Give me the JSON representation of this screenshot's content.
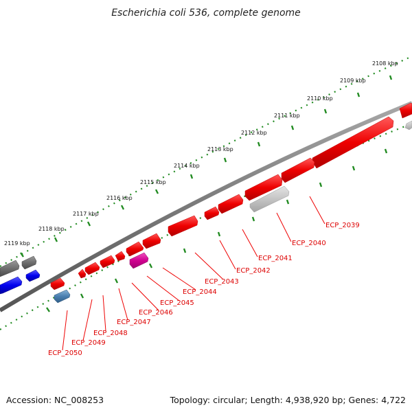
{
  "title": "Escherichia coli 536, complete genome",
  "accession": "Accession: NC_008253",
  "topology": "Topology: circular; Length: 4,938,920 bp; Genes: 4,722",
  "kbp_labels": [
    "2108 kbp",
    "2109 kbp",
    "2110 kbp",
    "2111 kbp",
    "2112 kbp",
    "2113 kbp",
    "2114 kbp",
    "2115 kbp",
    "2116 kbp",
    "2117 kbp",
    "2118 kbp",
    "2119 kbp"
  ],
  "gene_labels": [
    "ECP_2039",
    "ECP_2040",
    "ECP_2041",
    "ECP_2042",
    "ECP_2043",
    "ECP_2044",
    "ECP_2045",
    "ECP_2046",
    "ECP_2047",
    "ECP_2048",
    "ECP_2049",
    "ECP_2050"
  ],
  "colors": {
    "backbone": "#808080",
    "tick_track": "#228b22",
    "gene_red": "#ff0000",
    "gene_blue": "#0000ff",
    "gene_grey": "#707070",
    "gene_lightgrey": "#c8c8c8",
    "gene_magenta": "#e0109f",
    "gene_steelblue": "#4a7fb0",
    "label_red": "#dd0000"
  }
}
